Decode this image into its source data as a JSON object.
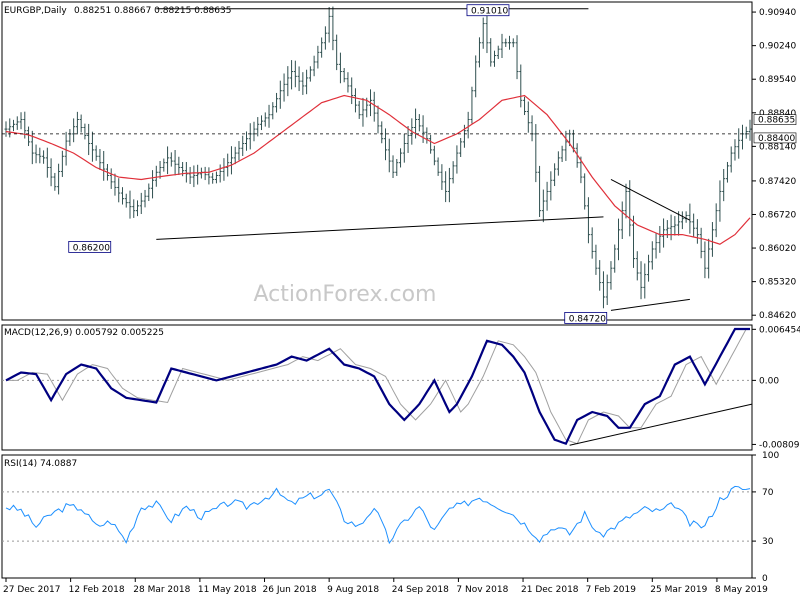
{
  "header": {
    "symbol": "EURGBP,Daily",
    "ohlc": "0.88251 0.88667 0.88215 0.88635"
  },
  "watermark": "ActionForex.com",
  "colors": {
    "bar": "#2f4f4f",
    "ma": "#e0303a",
    "macd": "#000080",
    "signal": "#a0a0a0",
    "rsi": "#1e90ff",
    "trend": "#000000"
  },
  "chart_data": [
    {
      "type": "ohlc",
      "title": "EURGBP,Daily",
      "ylim": [
        0.8452,
        0.9115
      ],
      "y_ticks": [
        "0.90940",
        "0.90240",
        "0.89540",
        "0.88840",
        "0.88140",
        "0.87420",
        "0.86720",
        "0.86020",
        "0.85320",
        "0.84620"
      ],
      "price_labels": [
        {
          "label": "0.88635",
          "value": 0.88635
        },
        {
          "label": "0.88400",
          "value": 0.884
        }
      ],
      "horizontal_line": 0.884,
      "x_ticks": [
        "27 Dec 2017",
        "12 Feb 2018",
        "28 Mar 2018",
        "11 May 2018",
        "26 Jun 2018",
        "9 Aug 2018",
        "24 Sep 2018",
        "7 Nov 2018",
        "21 Dec 2018",
        "7 Feb 2019",
        "25 Mar 2019",
        "8 May 2019"
      ],
      "price_path": [
        [
          0,
          0.885
        ],
        [
          4,
          0.887
        ],
        [
          7,
          0.88
        ],
        [
          10,
          0.879
        ],
        [
          13,
          0.873
        ],
        [
          16,
          0.8825
        ],
        [
          19,
          0.887
        ],
        [
          22,
          0.882
        ],
        [
          25,
          0.878
        ],
        [
          28,
          0.874
        ],
        [
          31,
          0.8705
        ],
        [
          34,
          0.868
        ],
        [
          37,
          0.871
        ],
        [
          40,
          0.876
        ],
        [
          43,
          0.879
        ],
        [
          46,
          0.877
        ],
        [
          49,
          0.875
        ],
        [
          52,
          0.876
        ],
        [
          55,
          0.8745
        ],
        [
          58,
          0.877
        ],
        [
          61,
          0.88
        ],
        [
          64,
          0.883
        ],
        [
          67,
          0.886
        ],
        [
          70,
          0.888
        ],
        [
          73,
          0.893
        ],
        [
          76,
          0.897
        ],
        [
          79,
          0.894
        ],
        [
          82,
          0.899
        ],
        [
          85,
          0.905
        ],
        [
          86,
          0.9085
        ],
        [
          88,
          0.8985
        ],
        [
          91,
          0.894
        ],
        [
          94,
          0.888
        ],
        [
          97,
          0.891
        ],
        [
          100,
          0.883
        ],
        [
          103,
          0.876
        ],
        [
          106,
          0.882
        ],
        [
          109,
          0.887
        ],
        [
          112,
          0.883
        ],
        [
          115,
          0.876
        ],
        [
          117,
          0.872
        ],
        [
          120,
          0.88
        ],
        [
          123,
          0.887
        ],
        [
          125,
          0.899
        ],
        [
          127,
          0.907
        ],
        [
          129,
          0.899
        ],
        [
          132,
          0.903
        ],
        [
          135,
          0.903
        ],
        [
          137,
          0.891
        ],
        [
          140,
          0.884
        ],
        [
          142,
          0.868
        ],
        [
          144,
          0.872
        ],
        [
          147,
          0.879
        ],
        [
          150,
          0.884
        ],
        [
          153,
          0.875
        ],
        [
          155,
          0.863
        ],
        [
          157,
          0.856
        ],
        [
          159,
          0.85
        ],
        [
          161,
          0.856
        ],
        [
          163,
          0.864
        ],
        [
          165,
          0.872
        ],
        [
          167,
          0.858
        ],
        [
          169,
          0.852
        ],
        [
          172,
          0.86
        ],
        [
          175,
          0.864
        ],
        [
          178,
          0.865
        ],
        [
          181,
          0.867
        ],
        [
          184,
          0.863
        ],
        [
          186,
          0.856
        ],
        [
          188,
          0.864
        ],
        [
          190,
          0.872
        ],
        [
          193,
          0.88
        ],
        [
          196,
          0.884
        ],
        [
          198,
          0.885
        ]
      ],
      "bars": 199,
      "moving_average": [
        [
          0,
          0.8845
        ],
        [
          6,
          0.8838
        ],
        [
          12,
          0.882
        ],
        [
          18,
          0.88
        ],
        [
          24,
          0.877
        ],
        [
          30,
          0.875
        ],
        [
          36,
          0.8745
        ],
        [
          42,
          0.8752
        ],
        [
          48,
          0.8758
        ],
        [
          54,
          0.876
        ],
        [
          60,
          0.8775
        ],
        [
          66,
          0.88
        ],
        [
          72,
          0.8835
        ],
        [
          78,
          0.887
        ],
        [
          84,
          0.8905
        ],
        [
          90,
          0.892
        ],
        [
          96,
          0.891
        ],
        [
          102,
          0.888
        ],
        [
          108,
          0.8845
        ],
        [
          114,
          0.882
        ],
        [
          120,
          0.884
        ],
        [
          126,
          0.887
        ],
        [
          132,
          0.891
        ],
        [
          138,
          0.892
        ],
        [
          144,
          0.888
        ],
        [
          150,
          0.882
        ],
        [
          156,
          0.875
        ],
        [
          162,
          0.869
        ],
        [
          168,
          0.865
        ],
        [
          174,
          0.863
        ],
        [
          180,
          0.863
        ],
        [
          186,
          0.862
        ],
        [
          190,
          0.861
        ],
        [
          194,
          0.863
        ],
        [
          198,
          0.8665
        ]
      ],
      "annotations": [
        {
          "label": "0.91010",
          "value": 0.9101,
          "x": 128
        },
        {
          "label": "0.86200",
          "value": 0.862,
          "x": 30
        },
        {
          "label": "0.84720",
          "value": 0.8472,
          "x": 162
        }
      ],
      "trend_lines": [
        {
          "from": [
            40,
            0.9101
          ],
          "to": [
            155,
            0.9101
          ]
        },
        {
          "from": [
            40,
            0.862
          ],
          "to": [
            159,
            0.8667
          ]
        },
        {
          "from": [
            161,
            0.8745
          ],
          "to": [
            182,
            0.866
          ]
        },
        {
          "from": [
            161,
            0.8472
          ],
          "to": [
            182,
            0.8495
          ]
        }
      ]
    },
    {
      "type": "line",
      "title": "MACD(12,26,9) 0.005792 0.005225",
      "ylim": [
        -0.0088,
        0.007
      ],
      "y_ticks": [
        "0.006454",
        "0.00",
        "-0.008095"
      ],
      "macd": [
        [
          0,
          0.0
        ],
        [
          4,
          0.001
        ],
        [
          8,
          0.0008
        ],
        [
          12,
          -0.0025
        ],
        [
          16,
          0.0008
        ],
        [
          20,
          0.002
        ],
        [
          24,
          0.0015
        ],
        [
          28,
          -0.001
        ],
        [
          32,
          -0.0022
        ],
        [
          36,
          -0.0025
        ],
        [
          40,
          -0.0028
        ],
        [
          44,
          0.0015
        ],
        [
          48,
          0.001
        ],
        [
          52,
          0.0005
        ],
        [
          56,
          0.0
        ],
        [
          60,
          0.0005
        ],
        [
          64,
          0.001
        ],
        [
          68,
          0.0015
        ],
        [
          72,
          0.002
        ],
        [
          76,
          0.003
        ],
        [
          80,
          0.0025
        ],
        [
          84,
          0.0035
        ],
        [
          86,
          0.004
        ],
        [
          90,
          0.002
        ],
        [
          94,
          0.0015
        ],
        [
          98,
          0.0005
        ],
        [
          102,
          -0.003
        ],
        [
          106,
          -0.005
        ],
        [
          110,
          -0.003
        ],
        [
          114,
          0.0
        ],
        [
          118,
          -0.004
        ],
        [
          120,
          -0.003
        ],
        [
          124,
          0.0005
        ],
        [
          128,
          0.005
        ],
        [
          132,
          0.0045
        ],
        [
          135,
          0.003
        ],
        [
          138,
          0.001
        ],
        [
          142,
          -0.004
        ],
        [
          146,
          -0.0075
        ],
        [
          149,
          -0.008
        ],
        [
          152,
          -0.005
        ],
        [
          156,
          -0.004
        ],
        [
          160,
          -0.0045
        ],
        [
          163,
          -0.006
        ],
        [
          166,
          -0.006
        ],
        [
          170,
          -0.003
        ],
        [
          174,
          -0.002
        ],
        [
          178,
          0.002
        ],
        [
          182,
          0.003
        ],
        [
          186,
          -0.0005
        ],
        [
          190,
          0.003
        ],
        [
          194,
          0.0065
        ],
        [
          198,
          0.0065
        ]
      ],
      "signal_offset": 3,
      "trend_line": {
        "from": [
          150,
          -0.0082
        ],
        "to": [
          198,
          -0.003
        ]
      }
    },
    {
      "type": "line",
      "title": "RSI(14) 74.0887",
      "ylim": [
        0,
        100
      ],
      "y_ticks": [
        "100",
        "70",
        "30",
        "0"
      ],
      "levels": [
        70,
        30
      ],
      "rsi": [
        [
          0,
          58
        ],
        [
          4,
          55
        ],
        [
          8,
          42
        ],
        [
          12,
          52
        ],
        [
          16,
          58
        ],
        [
          20,
          57
        ],
        [
          24,
          42
        ],
        [
          28,
          46
        ],
        [
          32,
          30
        ],
        [
          36,
          58
        ],
        [
          40,
          60
        ],
        [
          44,
          47
        ],
        [
          48,
          58
        ],
        [
          52,
          50
        ],
        [
          56,
          56
        ],
        [
          60,
          62
        ],
        [
          64,
          58
        ],
        [
          68,
          64
        ],
        [
          72,
          70
        ],
        [
          76,
          60
        ],
        [
          80,
          66
        ],
        [
          84,
          68
        ],
        [
          86,
          72
        ],
        [
          90,
          48
        ],
        [
          94,
          42
        ],
        [
          98,
          58
        ],
        [
          102,
          30
        ],
        [
          106,
          46
        ],
        [
          110,
          58
        ],
        [
          114,
          38
        ],
        [
          118,
          56
        ],
        [
          122,
          60
        ],
        [
          126,
          66
        ],
        [
          130,
          60
        ],
        [
          134,
          54
        ],
        [
          138,
          44
        ],
        [
          142,
          32
        ],
        [
          146,
          42
        ],
        [
          150,
          36
        ],
        [
          154,
          52
        ],
        [
          158,
          34
        ],
        [
          162,
          42
        ],
        [
          166,
          50
        ],
        [
          170,
          56
        ],
        [
          174,
          54
        ],
        [
          178,
          60
        ],
        [
          182,
          44
        ],
        [
          186,
          42
        ],
        [
          190,
          64
        ],
        [
          194,
          73
        ],
        [
          198,
          72
        ]
      ]
    }
  ]
}
